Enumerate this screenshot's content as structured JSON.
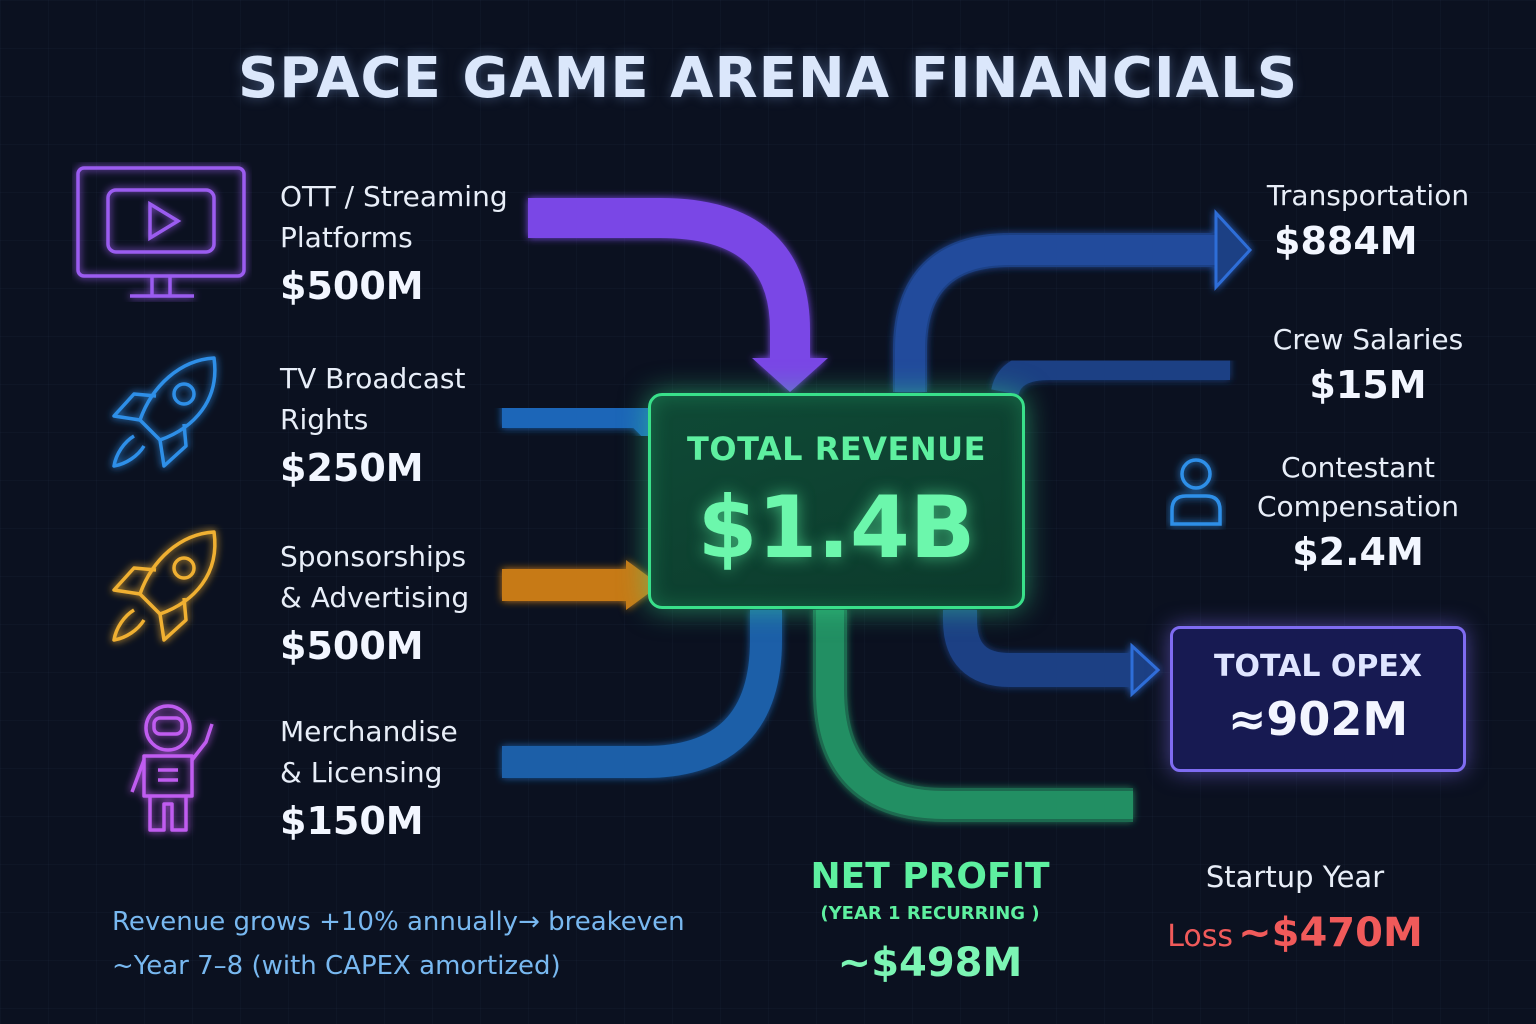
{
  "title": "SPACE GAME ARENA FINANCIALS",
  "revenue_sources": [
    {
      "label_lines": [
        "OTT / Streaming",
        "Platforms"
      ],
      "amount": "$500M",
      "icon": "monitor-play-icon",
      "color": "#9b5cf0"
    },
    {
      "label_lines": [
        "TV Broadcast",
        "Rights"
      ],
      "amount": "$250M",
      "icon": "rocket-icon",
      "color": "#2e8fe8"
    },
    {
      "label_lines": [
        "Sponsorships",
        "& Advertising"
      ],
      "amount": "$500M",
      "icon": "rocket-icon",
      "color": "#f0b030"
    },
    {
      "label_lines": [
        "Merchandise",
        "& Licensing"
      ],
      "amount": "$150M",
      "icon": "astronaut-icon",
      "color": "#c05cf0"
    }
  ],
  "total_revenue": {
    "label": "TOTAL REVENUE",
    "value": "$1.4B"
  },
  "costs": [
    {
      "label_lines": [
        "Transportation"
      ],
      "amount": "$884M"
    },
    {
      "label_lines": [
        "Crew Salaries"
      ],
      "amount": "$15M"
    },
    {
      "label_lines": [
        "Contestant",
        "Compensation"
      ],
      "amount": "$2.4M",
      "icon": "person-icon"
    }
  ],
  "total_opex": {
    "label": "TOTAL OPEX",
    "value": "≈902M"
  },
  "net_profit": {
    "label": "NET PROFIT",
    "sublabel": "(YEAR 1 RECURRING )",
    "value": "~$498M"
  },
  "startup": {
    "label": "Startup Year",
    "loss_word": "Loss",
    "loss_value": "~$470M"
  },
  "note_lines": [
    "Revenue grows +10% annually→ breakeven",
    "~Year 7–8 (with CAPEX amortized)"
  ],
  "colors": {
    "background": "#0b1120",
    "revenue_green": "#39e08a",
    "opex_purple": "#7f6cf2",
    "loss_red": "#f05a5a",
    "flow_blue": "#1e4fa0"
  }
}
